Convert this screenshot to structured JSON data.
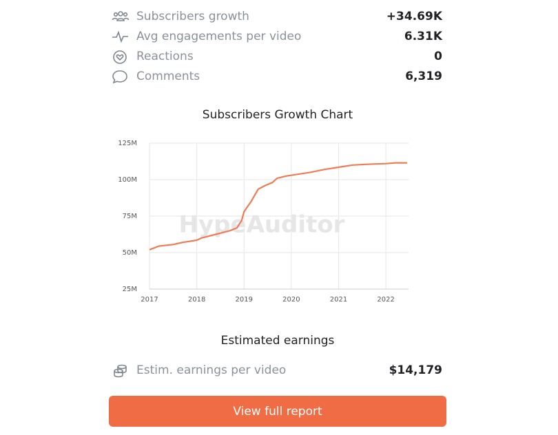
{
  "stats": [
    {
      "label": "Subscribers growth",
      "value": "+34.69K"
    },
    {
      "label": "Avg engagements per video",
      "value": "6.31K"
    },
    {
      "label": "Reactions",
      "value": "0"
    },
    {
      "label": "Comments",
      "value": "6,319"
    }
  ],
  "chart_data": {
    "type": "line",
    "title": "Subscribers Growth Chart",
    "watermark": "HypeAuditor",
    "x": [
      2017.0,
      2017.2,
      2017.5,
      2017.7,
      2018.0,
      2018.1,
      2018.4,
      2018.7,
      2018.85,
      2018.95,
      2019.0,
      2019.15,
      2019.3,
      2019.45,
      2019.6,
      2019.7,
      2019.9,
      2020.1,
      2020.4,
      2020.7,
      2021.0,
      2021.3,
      2021.6,
      2022.0,
      2022.2,
      2022.45
    ],
    "values": [
      52000000,
      54500000,
      55500000,
      57000000,
      58500000,
      60000000,
      62500000,
      65000000,
      67000000,
      72000000,
      78000000,
      85000000,
      93500000,
      96000000,
      98000000,
      101000000,
      102500000,
      103500000,
      105000000,
      107000000,
      108500000,
      110000000,
      110500000,
      111000000,
      111500000,
      111500000
    ],
    "color": "#ef7b55",
    "xlim": [
      2017,
      2022.45
    ],
    "xticks": [
      2017,
      2018,
      2019,
      2020,
      2021,
      2022
    ],
    "ylim": [
      25000000,
      125000000
    ],
    "yticks": [
      {
        "value": 25000000,
        "label": "25M"
      },
      {
        "value": 50000000,
        "label": "50M"
      },
      {
        "value": 75000000,
        "label": "75M"
      },
      {
        "value": 100000000,
        "label": "100M"
      },
      {
        "value": 125000000,
        "label": "125M"
      }
    ],
    "grid": true
  },
  "earnings": {
    "title": "Estimated earnings",
    "rows": [
      {
        "label": "Estim. earnings per video",
        "value": "$14,179"
      }
    ]
  },
  "button": {
    "label": "View full report"
  }
}
